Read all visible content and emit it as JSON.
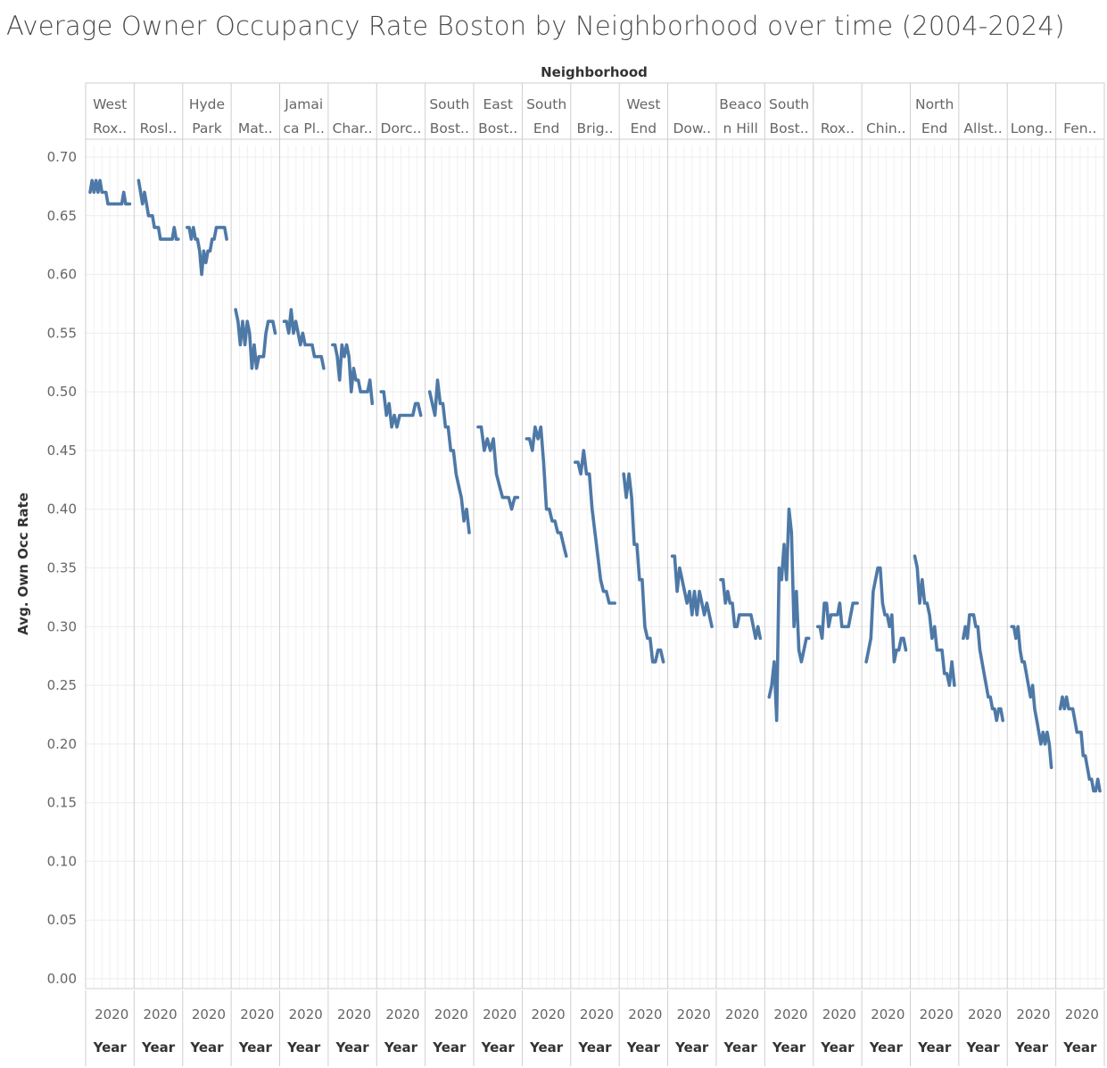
{
  "title": "Average Owner Occupancy Rate Boston by Neighborhood over time (2004-2024)",
  "chart_data": {
    "type": "line",
    "title": "Average Owner Occupancy Rate Boston by Neighborhood over time (2004-2024)",
    "column_header": "Neighborhood",
    "ylabel": "Avg. Own Occ Rate",
    "xlabel": "Year",
    "x_tick_label": "2020",
    "x_range": [
      2004,
      2024
    ],
    "ylim": [
      0.0,
      0.7
    ],
    "yticks": [
      "0.00",
      "0.05",
      "0.10",
      "0.15",
      "0.20",
      "0.25",
      "0.30",
      "0.35",
      "0.40",
      "0.45",
      "0.50",
      "0.55",
      "0.60",
      "0.65",
      "0.70"
    ],
    "grid": true,
    "line_color": "#4e79a7",
    "panels": [
      {
        "label": [
          "West",
          "Rox.."
        ],
        "values": [
          0.67,
          0.68,
          0.67,
          0.68,
          0.67,
          0.68,
          0.67,
          0.67,
          0.67,
          0.66,
          0.66,
          0.66,
          0.66,
          0.66,
          0.66,
          0.66,
          0.66,
          0.67,
          0.66,
          0.66,
          0.66
        ]
      },
      {
        "label": [
          "",
          "Rosl.."
        ],
        "values": [
          0.68,
          0.67,
          0.66,
          0.67,
          0.66,
          0.65,
          0.65,
          0.65,
          0.64,
          0.64,
          0.64,
          0.63,
          0.63,
          0.63,
          0.63,
          0.63,
          0.63,
          0.63,
          0.64,
          0.63,
          0.63
        ]
      },
      {
        "label": [
          "Hyde",
          "Park"
        ],
        "values": [
          0.64,
          0.64,
          0.63,
          0.64,
          0.63,
          0.63,
          0.62,
          0.6,
          0.62,
          0.61,
          0.62,
          0.62,
          0.63,
          0.63,
          0.64,
          0.64,
          0.64,
          0.64,
          0.64,
          0.63
        ]
      },
      {
        "label": [
          "",
          "Mat.."
        ],
        "values": [
          0.57,
          0.56,
          0.54,
          0.56,
          0.54,
          0.56,
          0.55,
          0.52,
          0.54,
          0.52,
          0.53,
          0.53,
          0.53,
          0.55,
          0.56,
          0.56,
          0.56,
          0.55
        ]
      },
      {
        "label": [
          "Jamai",
          "ca Pl.."
        ],
        "values": [
          0.56,
          0.56,
          0.55,
          0.57,
          0.55,
          0.56,
          0.55,
          0.54,
          0.55,
          0.54,
          0.54,
          0.54,
          0.54,
          0.53,
          0.53,
          0.53,
          0.53,
          0.52
        ]
      },
      {
        "label": [
          "",
          "Char.."
        ],
        "values": [
          0.54,
          0.54,
          0.53,
          0.51,
          0.54,
          0.53,
          0.54,
          0.53,
          0.5,
          0.52,
          0.51,
          0.51,
          0.5,
          0.5,
          0.5,
          0.5,
          0.51,
          0.49
        ]
      },
      {
        "label": [
          "",
          "Dorc.."
        ],
        "values": [
          0.5,
          0.5,
          0.48,
          0.49,
          0.47,
          0.48,
          0.47,
          0.48,
          0.48,
          0.48,
          0.48,
          0.48,
          0.48,
          0.49,
          0.49,
          0.48
        ]
      },
      {
        "label": [
          "South",
          "Bost.."
        ],
        "values": [
          0.5,
          0.49,
          0.48,
          0.51,
          0.49,
          0.49,
          0.47,
          0.47,
          0.45,
          0.45,
          0.43,
          0.42,
          0.41,
          0.39,
          0.4,
          0.38
        ]
      },
      {
        "label": [
          "East",
          "Bost.."
        ],
        "values": [
          0.47,
          0.47,
          0.45,
          0.46,
          0.45,
          0.46,
          0.43,
          0.42,
          0.41,
          0.41,
          0.41,
          0.4,
          0.41,
          0.41
        ]
      },
      {
        "label": [
          "South",
          "End"
        ],
        "values": [
          0.46,
          0.46,
          0.45,
          0.47,
          0.46,
          0.47,
          0.44,
          0.4,
          0.4,
          0.39,
          0.39,
          0.38,
          0.38,
          0.37,
          0.36
        ]
      },
      {
        "label": [
          "",
          "Brig.."
        ],
        "values": [
          0.44,
          0.44,
          0.43,
          0.45,
          0.43,
          0.43,
          0.4,
          0.38,
          0.36,
          0.34,
          0.33,
          0.33,
          0.32,
          0.32,
          0.32
        ]
      },
      {
        "label": [
          "West",
          "End"
        ],
        "values": [
          0.43,
          0.41,
          0.43,
          0.41,
          0.37,
          0.37,
          0.34,
          0.34,
          0.3,
          0.29,
          0.29,
          0.27,
          0.27,
          0.28,
          0.28,
          0.27
        ]
      },
      {
        "label": [
          "",
          "Dow.."
        ],
        "values": [
          0.36,
          0.36,
          0.33,
          0.35,
          0.34,
          0.33,
          0.32,
          0.33,
          0.31,
          0.33,
          0.31,
          0.33,
          0.32,
          0.31,
          0.32,
          0.31,
          0.3
        ]
      },
      {
        "label": [
          "Beaco",
          "n Hill"
        ],
        "values": [
          0.34,
          0.34,
          0.32,
          0.33,
          0.32,
          0.32,
          0.3,
          0.3,
          0.31,
          0.31,
          0.31,
          0.31,
          0.31,
          0.31,
          0.3,
          0.29,
          0.3,
          0.29
        ]
      },
      {
        "label": [
          "South",
          "Bost.."
        ],
        "values": [
          0.24,
          0.25,
          0.27,
          0.22,
          0.35,
          0.34,
          0.37,
          0.34,
          0.4,
          0.38,
          0.3,
          0.33,
          0.28,
          0.27,
          0.28,
          0.29,
          0.29
        ]
      },
      {
        "label": [
          "",
          "Rox.."
        ],
        "values": [
          0.3,
          0.3,
          0.29,
          0.32,
          0.32,
          0.3,
          0.31,
          0.31,
          0.31,
          0.31,
          0.32,
          0.3,
          0.3,
          0.3,
          0.3,
          0.31,
          0.32,
          0.32,
          0.32
        ]
      },
      {
        "label": [
          "",
          "Chin.."
        ],
        "values": [
          0.27,
          0.28,
          0.29,
          0.33,
          0.34,
          0.35,
          0.35,
          0.32,
          0.31,
          0.31,
          0.3,
          0.31,
          0.27,
          0.28,
          0.28,
          0.29,
          0.29,
          0.28
        ]
      },
      {
        "label": [
          "North",
          "End"
        ],
        "values": [
          0.36,
          0.35,
          0.32,
          0.34,
          0.32,
          0.32,
          0.31,
          0.29,
          0.3,
          0.28,
          0.28,
          0.28,
          0.26,
          0.26,
          0.25,
          0.27,
          0.25
        ]
      },
      {
        "label": [
          "",
          "Allst.."
        ],
        "values": [
          0.29,
          0.3,
          0.29,
          0.31,
          0.31,
          0.31,
          0.3,
          0.3,
          0.28,
          0.27,
          0.26,
          0.25,
          0.24,
          0.24,
          0.23,
          0.23,
          0.22,
          0.23,
          0.23,
          0.22
        ]
      },
      {
        "label": [
          "",
          "Long.."
        ],
        "values": [
          0.3,
          0.3,
          0.29,
          0.3,
          0.28,
          0.27,
          0.27,
          0.26,
          0.25,
          0.24,
          0.25,
          0.23,
          0.22,
          0.21,
          0.2,
          0.21,
          0.2,
          0.21,
          0.2,
          0.18
        ]
      },
      {
        "label": [
          "",
          "Fen.."
        ],
        "values": [
          0.23,
          0.24,
          0.23,
          0.24,
          0.23,
          0.23,
          0.23,
          0.22,
          0.21,
          0.21,
          0.21,
          0.19,
          0.19,
          0.18,
          0.17,
          0.17,
          0.16,
          0.16,
          0.17,
          0.16
        ]
      }
    ]
  }
}
